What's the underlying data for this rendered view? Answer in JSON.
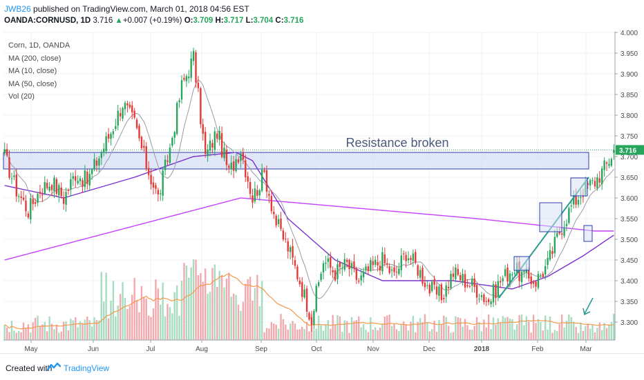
{
  "header": {
    "user": "JWB26",
    "published": "published on TradingView.com, March 01, 2018 04:56 EST",
    "symbol": "OANDA:CORNUSD, 1D",
    "price": "3.716",
    "change_arrow": "▲",
    "change": "+0.007 (+0.19%)",
    "o_label": "O:",
    "o_value": "3.709",
    "h_label": "H:",
    "h_value": "3.717",
    "l_label": "L:",
    "l_value": "3.704",
    "c_label": "C:",
    "c_value": "3.716"
  },
  "legend": {
    "title": "Corn, 1D, OANDA",
    "ma200": "MA (200, close)",
    "ma10": "MA (10, close)",
    "ma50": "MA (50, close)",
    "vol": "Vol (20)"
  },
  "annotation": "Resistance broken",
  "footer": {
    "created_with": "Created with",
    "brand": "TradingView"
  },
  "colors": {
    "up": "#26a65b",
    "down": "#e53935",
    "ma200": "#c640ff",
    "ma50": "#7b2fd1",
    "ma10": "#9a9aa6",
    "vol_up": "#a8dcc0",
    "vol_down": "#f2a9ae",
    "vol_ma": "#f39a4a",
    "zone_fill": "#d6e0f5",
    "zone_border": "#2b3cb0",
    "trend": "#2a9d8f"
  },
  "chart_data": {
    "type": "candlestick",
    "x_ticks": [
      "May",
      "Jun",
      "Jul",
      "Aug",
      "Sep",
      "Oct",
      "Nov",
      "Dec",
      "2018",
      "Feb",
      "Mar"
    ],
    "y_ticks": [
      "4.000",
      "3.950",
      "3.900",
      "3.850",
      "3.800",
      "3.750",
      "3.700",
      "3.650",
      "3.600",
      "3.550",
      "3.500",
      "3.450",
      "3.400",
      "3.350",
      "3.300"
    ],
    "ylim": [
      3.25,
      4.0
    ],
    "last_price": "3.716",
    "resistance_zone": [
      3.67,
      3.71
    ],
    "close_path": [
      [
        0,
        3.7
      ],
      [
        5,
        3.62
      ],
      [
        10,
        3.57
      ],
      [
        15,
        3.62
      ],
      [
        20,
        3.64
      ],
      [
        25,
        3.6
      ],
      [
        30,
        3.66
      ],
      [
        35,
        3.64
      ],
      [
        40,
        3.7
      ],
      [
        45,
        3.76
      ],
      [
        50,
        3.83
      ],
      [
        55,
        3.78
      ],
      [
        60,
        3.68
      ],
      [
        65,
        3.6
      ],
      [
        70,
        3.72
      ],
      [
        75,
        3.87
      ],
      [
        80,
        3.94
      ],
      [
        85,
        3.7
      ],
      [
        90,
        3.76
      ],
      [
        95,
        3.66
      ],
      [
        100,
        3.72
      ],
      [
        105,
        3.6
      ],
      [
        110,
        3.66
      ],
      [
        115,
        3.54
      ],
      [
        120,
        3.48
      ],
      [
        125,
        3.4
      ],
      [
        130,
        3.31
      ],
      [
        135,
        3.45
      ],
      [
        140,
        3.42
      ],
      [
        145,
        3.44
      ],
      [
        150,
        3.4
      ],
      [
        155,
        3.43
      ],
      [
        160,
        3.45
      ],
      [
        165,
        3.41
      ],
      [
        170,
        3.47
      ],
      [
        175,
        3.43
      ],
      [
        180,
        3.38
      ],
      [
        185,
        3.36
      ],
      [
        190,
        3.42
      ],
      [
        195,
        3.4
      ],
      [
        200,
        3.38
      ],
      [
        205,
        3.35
      ],
      [
        210,
        3.4
      ],
      [
        215,
        3.43
      ],
      [
        220,
        3.41
      ],
      [
        225,
        3.4
      ],
      [
        230,
        3.44
      ],
      [
        235,
        3.52
      ],
      [
        240,
        3.58
      ],
      [
        245,
        3.62
      ],
      [
        250,
        3.64
      ],
      [
        255,
        3.68
      ],
      [
        258,
        3.716
      ]
    ],
    "ma200_path": [
      [
        0,
        3.45
      ],
      [
        80,
        3.57
      ],
      [
        100,
        3.6
      ],
      [
        200,
        3.55
      ],
      [
        250,
        3.52
      ]
    ],
    "ma50_path": [
      [
        0,
        3.63
      ],
      [
        25,
        3.6
      ],
      [
        55,
        3.65
      ],
      [
        80,
        3.7
      ],
      [
        98,
        3.71
      ],
      [
        105,
        3.69
      ],
      [
        120,
        3.55
      ],
      [
        140,
        3.45
      ],
      [
        160,
        3.4
      ],
      [
        190,
        3.4
      ],
      [
        215,
        3.38
      ],
      [
        230,
        3.41
      ],
      [
        245,
        3.46
      ],
      [
        258,
        3.51
      ]
    ]
  }
}
